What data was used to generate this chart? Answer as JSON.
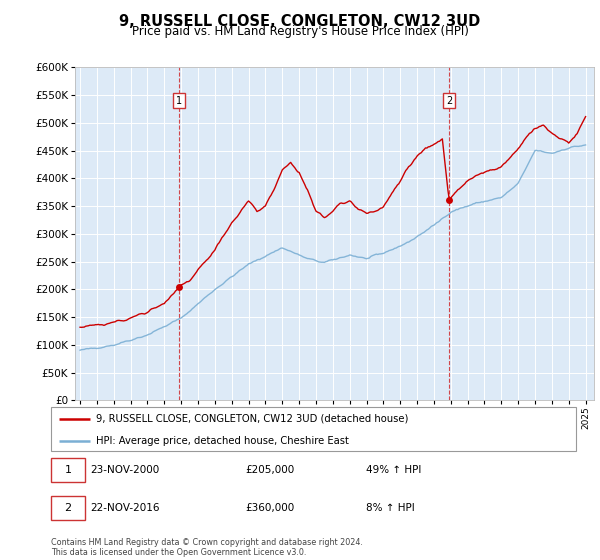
{
  "title": "9, RUSSELL CLOSE, CONGLETON, CW12 3UD",
  "subtitle": "Price paid vs. HM Land Registry's House Price Index (HPI)",
  "legend_label_red": "9, RUSSELL CLOSE, CONGLETON, CW12 3UD (detached house)",
  "legend_label_blue": "HPI: Average price, detached house, Cheshire East",
  "footnote": "Contains HM Land Registry data © Crown copyright and database right 2024.\nThis data is licensed under the Open Government Licence v3.0.",
  "annotation1_date": "23-NOV-2000",
  "annotation1_value": "£205,000",
  "annotation1_pct": "49% ↑ HPI",
  "annotation2_date": "22-NOV-2016",
  "annotation2_value": "£360,000",
  "annotation2_pct": "8% ↑ HPI",
  "sale1_x": 2000.9,
  "sale1_y": 205000,
  "sale2_x": 2016.9,
  "sale2_y": 360000,
  "ylim": [
    0,
    600000
  ],
  "xlim_start": 1994.7,
  "xlim_end": 2025.5,
  "red_color": "#cc0000",
  "blue_color": "#7bafd4",
  "plot_bg_color": "#ddeaf7"
}
